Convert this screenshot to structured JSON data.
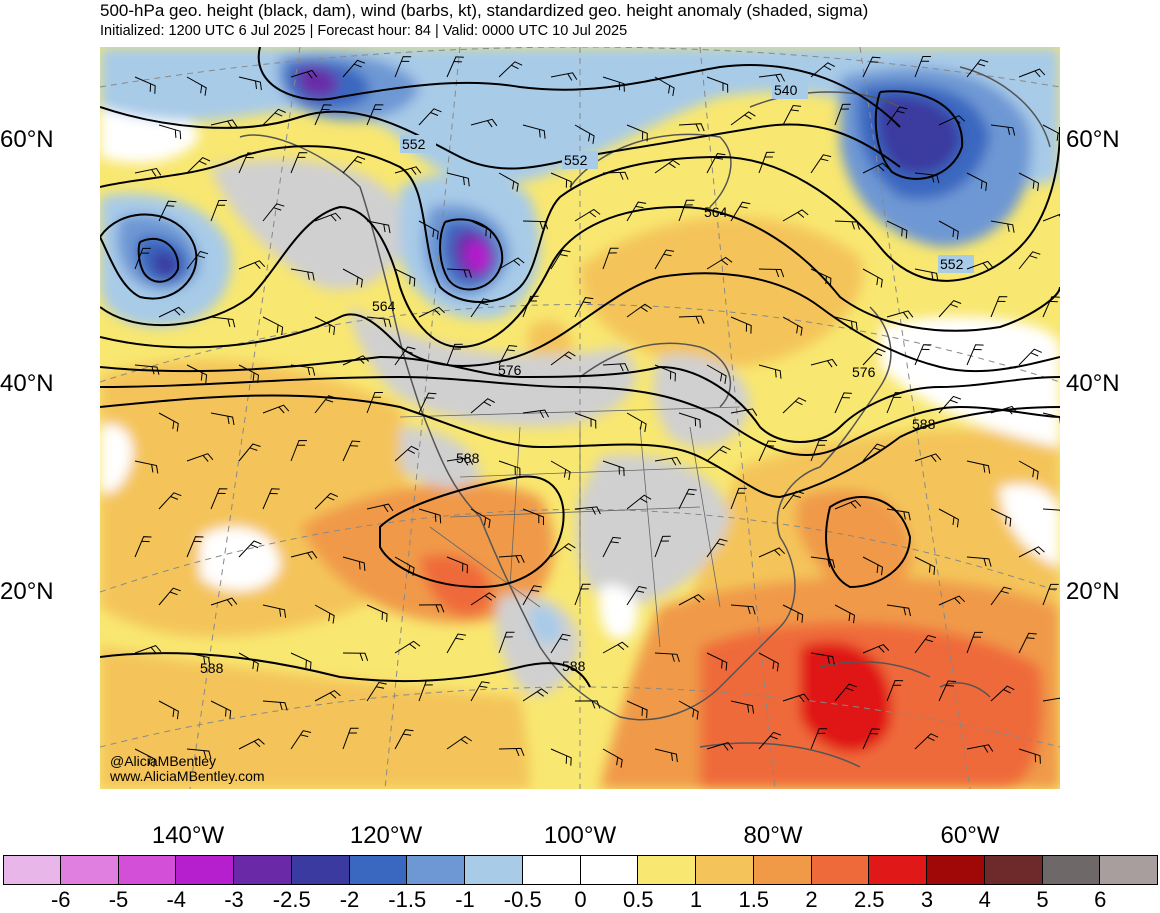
{
  "header": {
    "title": "500-hPa geo. height (black, dam), wind (barbs, kt), standardized geo. height anomaly (shaded, sigma)",
    "subtitle": "Initialized: 1200 UTC 6 Jul 2025 | Forecast hour: 84 | Valid: 0000 UTC 10 Jul 2025"
  },
  "map": {
    "lat_labels": [
      "60°N",
      "40°N",
      "20°N"
    ],
    "lon_labels": [
      "140°W",
      "120°W",
      "100°W",
      "80°W",
      "60°W"
    ],
    "contour_labels": [
      "540",
      "552",
      "552",
      "552",
      "564",
      "564",
      "576",
      "576",
      "588",
      "588",
      "588",
      "588"
    ],
    "credits": [
      "@AliciaMBentley",
      "www.AliciaMBentley.com"
    ],
    "colors": {
      "land_outline": "#555555",
      "contour": "#000000",
      "graticule": "#888888"
    }
  },
  "colorbar": {
    "tick_labels": [
      "-6",
      "-5",
      "-4",
      "-3",
      "-2.5",
      "-2",
      "-1.5",
      "-1",
      "-0.5",
      "0",
      "0.5",
      "1",
      "1.5",
      "2",
      "2.5",
      "3",
      "4",
      "5",
      "6"
    ],
    "colors": [
      "#e8b6e8",
      "#e07fe0",
      "#d44fd8",
      "#b61fce",
      "#6a2aa8",
      "#3a3aa0",
      "#3a68c0",
      "#6e98d4",
      "#a8cbe8",
      "#ffffff",
      "#ffffff",
      "#f8e770",
      "#f4c45a",
      "#f09a48",
      "#ef6a3a",
      "#e01818",
      "#a00808",
      "#6e2a2a",
      "#6e6868",
      "#a89e9e"
    ]
  }
}
